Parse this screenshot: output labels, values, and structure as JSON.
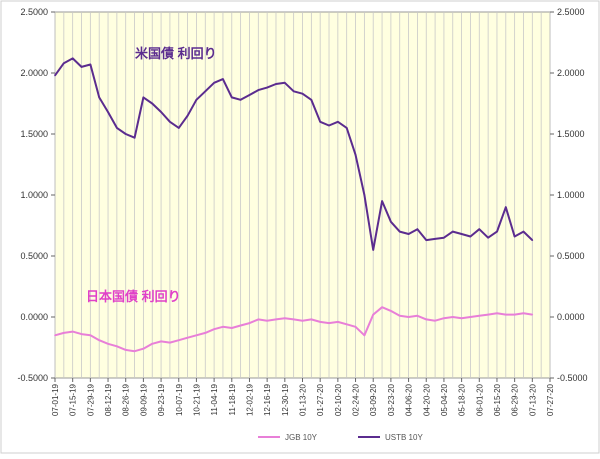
{
  "chart_data": {
    "type": "line",
    "title": "",
    "xlabel": "",
    "ylabel": "",
    "ylim": [
      -0.5,
      2.5
    ],
    "y_ticks": [
      "2.5000",
      "2.0000",
      "1.5000",
      "1.0000",
      "0.5000",
      "0.0000",
      "-0.5000"
    ],
    "y_tick_values": [
      2.5,
      2.0,
      1.5,
      1.0,
      0.5,
      0.0,
      -0.5
    ],
    "dual_axis_mirror": true,
    "grid": "vertical",
    "plot_background": "#FFFFE0",
    "legend_position": "bottom",
    "x_ticks": [
      "07-01-19",
      "07-15-19",
      "07-29-19",
      "08-12-19",
      "08-26-19",
      "09-09-19",
      "09-23-19",
      "10-07-19",
      "10-21-19",
      "11-04-19",
      "11-18-19",
      "12-02-19",
      "12-16-19",
      "12-30-19",
      "01-13-20",
      "01-27-20",
      "02-10-20",
      "02-24-20",
      "03-09-20",
      "03-23-20",
      "04-06-20",
      "04-20-20",
      "05-04-20",
      "05-18-20",
      "06-01-20",
      "06-15-20",
      "06-29-20",
      "07-13-20",
      "07-27-20"
    ],
    "annotations": [
      {
        "text": "米国債 利回り",
        "series": "USTB 10Y"
      },
      {
        "text": "日本国債 利回り",
        "series": "JGB 10Y"
      }
    ],
    "series": [
      {
        "name": "JGB 10Y",
        "color": "#E87FD8",
        "x": [
          "07-01-19",
          "07-08-19",
          "07-15-19",
          "07-22-19",
          "07-29-19",
          "08-05-19",
          "08-12-19",
          "08-19-19",
          "08-26-19",
          "09-02-19",
          "09-09-19",
          "09-16-19",
          "09-23-19",
          "09-30-19",
          "10-07-19",
          "10-14-19",
          "10-21-19",
          "10-28-19",
          "11-04-19",
          "11-11-19",
          "11-18-19",
          "11-25-19",
          "12-02-19",
          "12-09-19",
          "12-16-19",
          "12-23-19",
          "12-30-19",
          "01-06-20",
          "01-13-20",
          "01-20-20",
          "01-27-20",
          "02-03-20",
          "02-10-20",
          "02-17-20",
          "02-24-20",
          "03-02-20",
          "03-09-20",
          "03-16-20",
          "03-23-20",
          "03-30-20",
          "04-06-20",
          "04-13-20",
          "04-20-20",
          "04-27-20",
          "05-04-20",
          "05-11-20",
          "05-18-20",
          "05-25-20",
          "06-01-20",
          "06-08-20",
          "06-15-20",
          "06-22-20",
          "06-29-20",
          "07-06-20",
          "07-13-20"
        ],
        "values": [
          -0.15,
          -0.13,
          -0.12,
          -0.14,
          -0.15,
          -0.19,
          -0.22,
          -0.24,
          -0.27,
          -0.28,
          -0.26,
          -0.22,
          -0.2,
          -0.21,
          -0.19,
          -0.17,
          -0.15,
          -0.13,
          -0.1,
          -0.08,
          -0.09,
          -0.07,
          -0.05,
          -0.02,
          -0.03,
          -0.02,
          -0.01,
          -0.02,
          -0.03,
          -0.02,
          -0.04,
          -0.05,
          -0.04,
          -0.06,
          -0.08,
          -0.15,
          0.02,
          0.08,
          0.05,
          0.01,
          0.0,
          0.01,
          -0.02,
          -0.03,
          -0.01,
          0.0,
          -0.01,
          0.0,
          0.01,
          0.02,
          0.03,
          0.02,
          0.02,
          0.03,
          0.02
        ]
      },
      {
        "name": "USTB 10Y",
        "color": "#5B2C8F",
        "x": [
          "07-01-19",
          "07-08-19",
          "07-15-19",
          "07-22-19",
          "07-29-19",
          "08-05-19",
          "08-12-19",
          "08-19-19",
          "08-26-19",
          "09-02-19",
          "09-09-19",
          "09-16-19",
          "09-23-19",
          "09-30-19",
          "10-07-19",
          "10-14-19",
          "10-21-19",
          "10-28-19",
          "11-04-19",
          "11-11-19",
          "11-18-19",
          "11-25-19",
          "12-02-19",
          "12-09-19",
          "12-16-19",
          "12-23-19",
          "12-30-19",
          "01-06-20",
          "01-13-20",
          "01-20-20",
          "01-27-20",
          "02-03-20",
          "02-10-20",
          "02-17-20",
          "02-24-20",
          "03-02-20",
          "03-09-20",
          "03-16-20",
          "03-23-20",
          "03-30-20",
          "04-06-20",
          "04-13-20",
          "04-20-20",
          "04-27-20",
          "05-04-20",
          "05-11-20",
          "05-18-20",
          "05-25-20",
          "06-01-20",
          "06-08-20",
          "06-15-20",
          "06-22-20",
          "06-29-20",
          "07-06-20",
          "07-13-20"
        ],
        "values": [
          1.98,
          2.08,
          2.12,
          2.05,
          2.07,
          1.8,
          1.68,
          1.55,
          1.5,
          1.47,
          1.8,
          1.75,
          1.68,
          1.6,
          1.55,
          1.65,
          1.78,
          1.85,
          1.92,
          1.95,
          1.8,
          1.78,
          1.82,
          1.86,
          1.88,
          1.91,
          1.92,
          1.85,
          1.83,
          1.78,
          1.6,
          1.57,
          1.6,
          1.55,
          1.33,
          1.0,
          0.55,
          0.95,
          0.78,
          0.7,
          0.68,
          0.72,
          0.63,
          0.64,
          0.65,
          0.7,
          0.68,
          0.66,
          0.72,
          0.65,
          0.7,
          0.9,
          0.66,
          0.7,
          0.63
        ]
      }
    ]
  }
}
